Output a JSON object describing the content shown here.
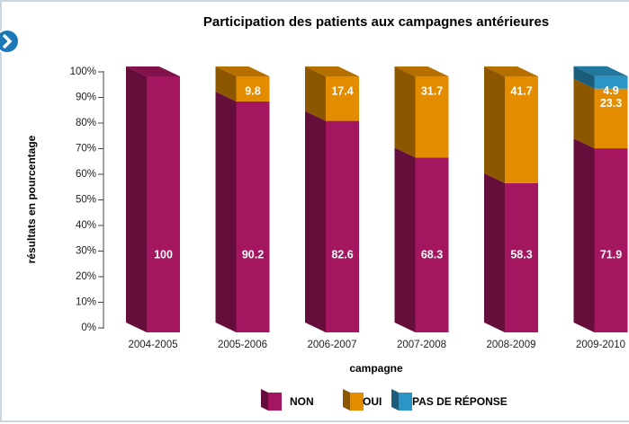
{
  "chart_data": {
    "type": "bar3d-stacked",
    "title": "Participation des patients aux campagnes antérieures",
    "x_label": "campagne",
    "y_label": "résultats en pourcentage",
    "categories": [
      "2004-2005",
      "2005-2006",
      "2006-2007",
      "2007-2008",
      "2008-2009",
      "2009-2010"
    ],
    "series": [
      {
        "name": "NON",
        "color": "#a4165f",
        "values": [
          100,
          90.2,
          82.6,
          68.3,
          58.3,
          71.9
        ]
      },
      {
        "name": "OUI",
        "color": "#e38c00",
        "values": [
          null,
          9.8,
          17.4,
          31.7,
          41.7,
          23.3
        ]
      },
      {
        "name": "PAS DE RÉPONSE",
        "color": "#2b95c6",
        "values": [
          null,
          null,
          null,
          null,
          null,
          4.9
        ]
      }
    ],
    "ylim": [
      0,
      100
    ],
    "yticks": [
      {
        "value": 0,
        "label": "0%"
      },
      {
        "value": 10,
        "label": "10%"
      },
      {
        "value": 20,
        "label": "20%"
      },
      {
        "value": 30,
        "label": "30%"
      },
      {
        "value": 40,
        "label": "40%"
      },
      {
        "value": 50,
        "label": "50%"
      },
      {
        "value": 60,
        "label": "60%"
      },
      {
        "value": 70,
        "label": "70%"
      },
      {
        "value": 80,
        "label": "80%"
      },
      {
        "value": 90,
        "label": "90%"
      },
      {
        "value": 100,
        "label": "100%"
      }
    ],
    "legend": "bottom"
  }
}
